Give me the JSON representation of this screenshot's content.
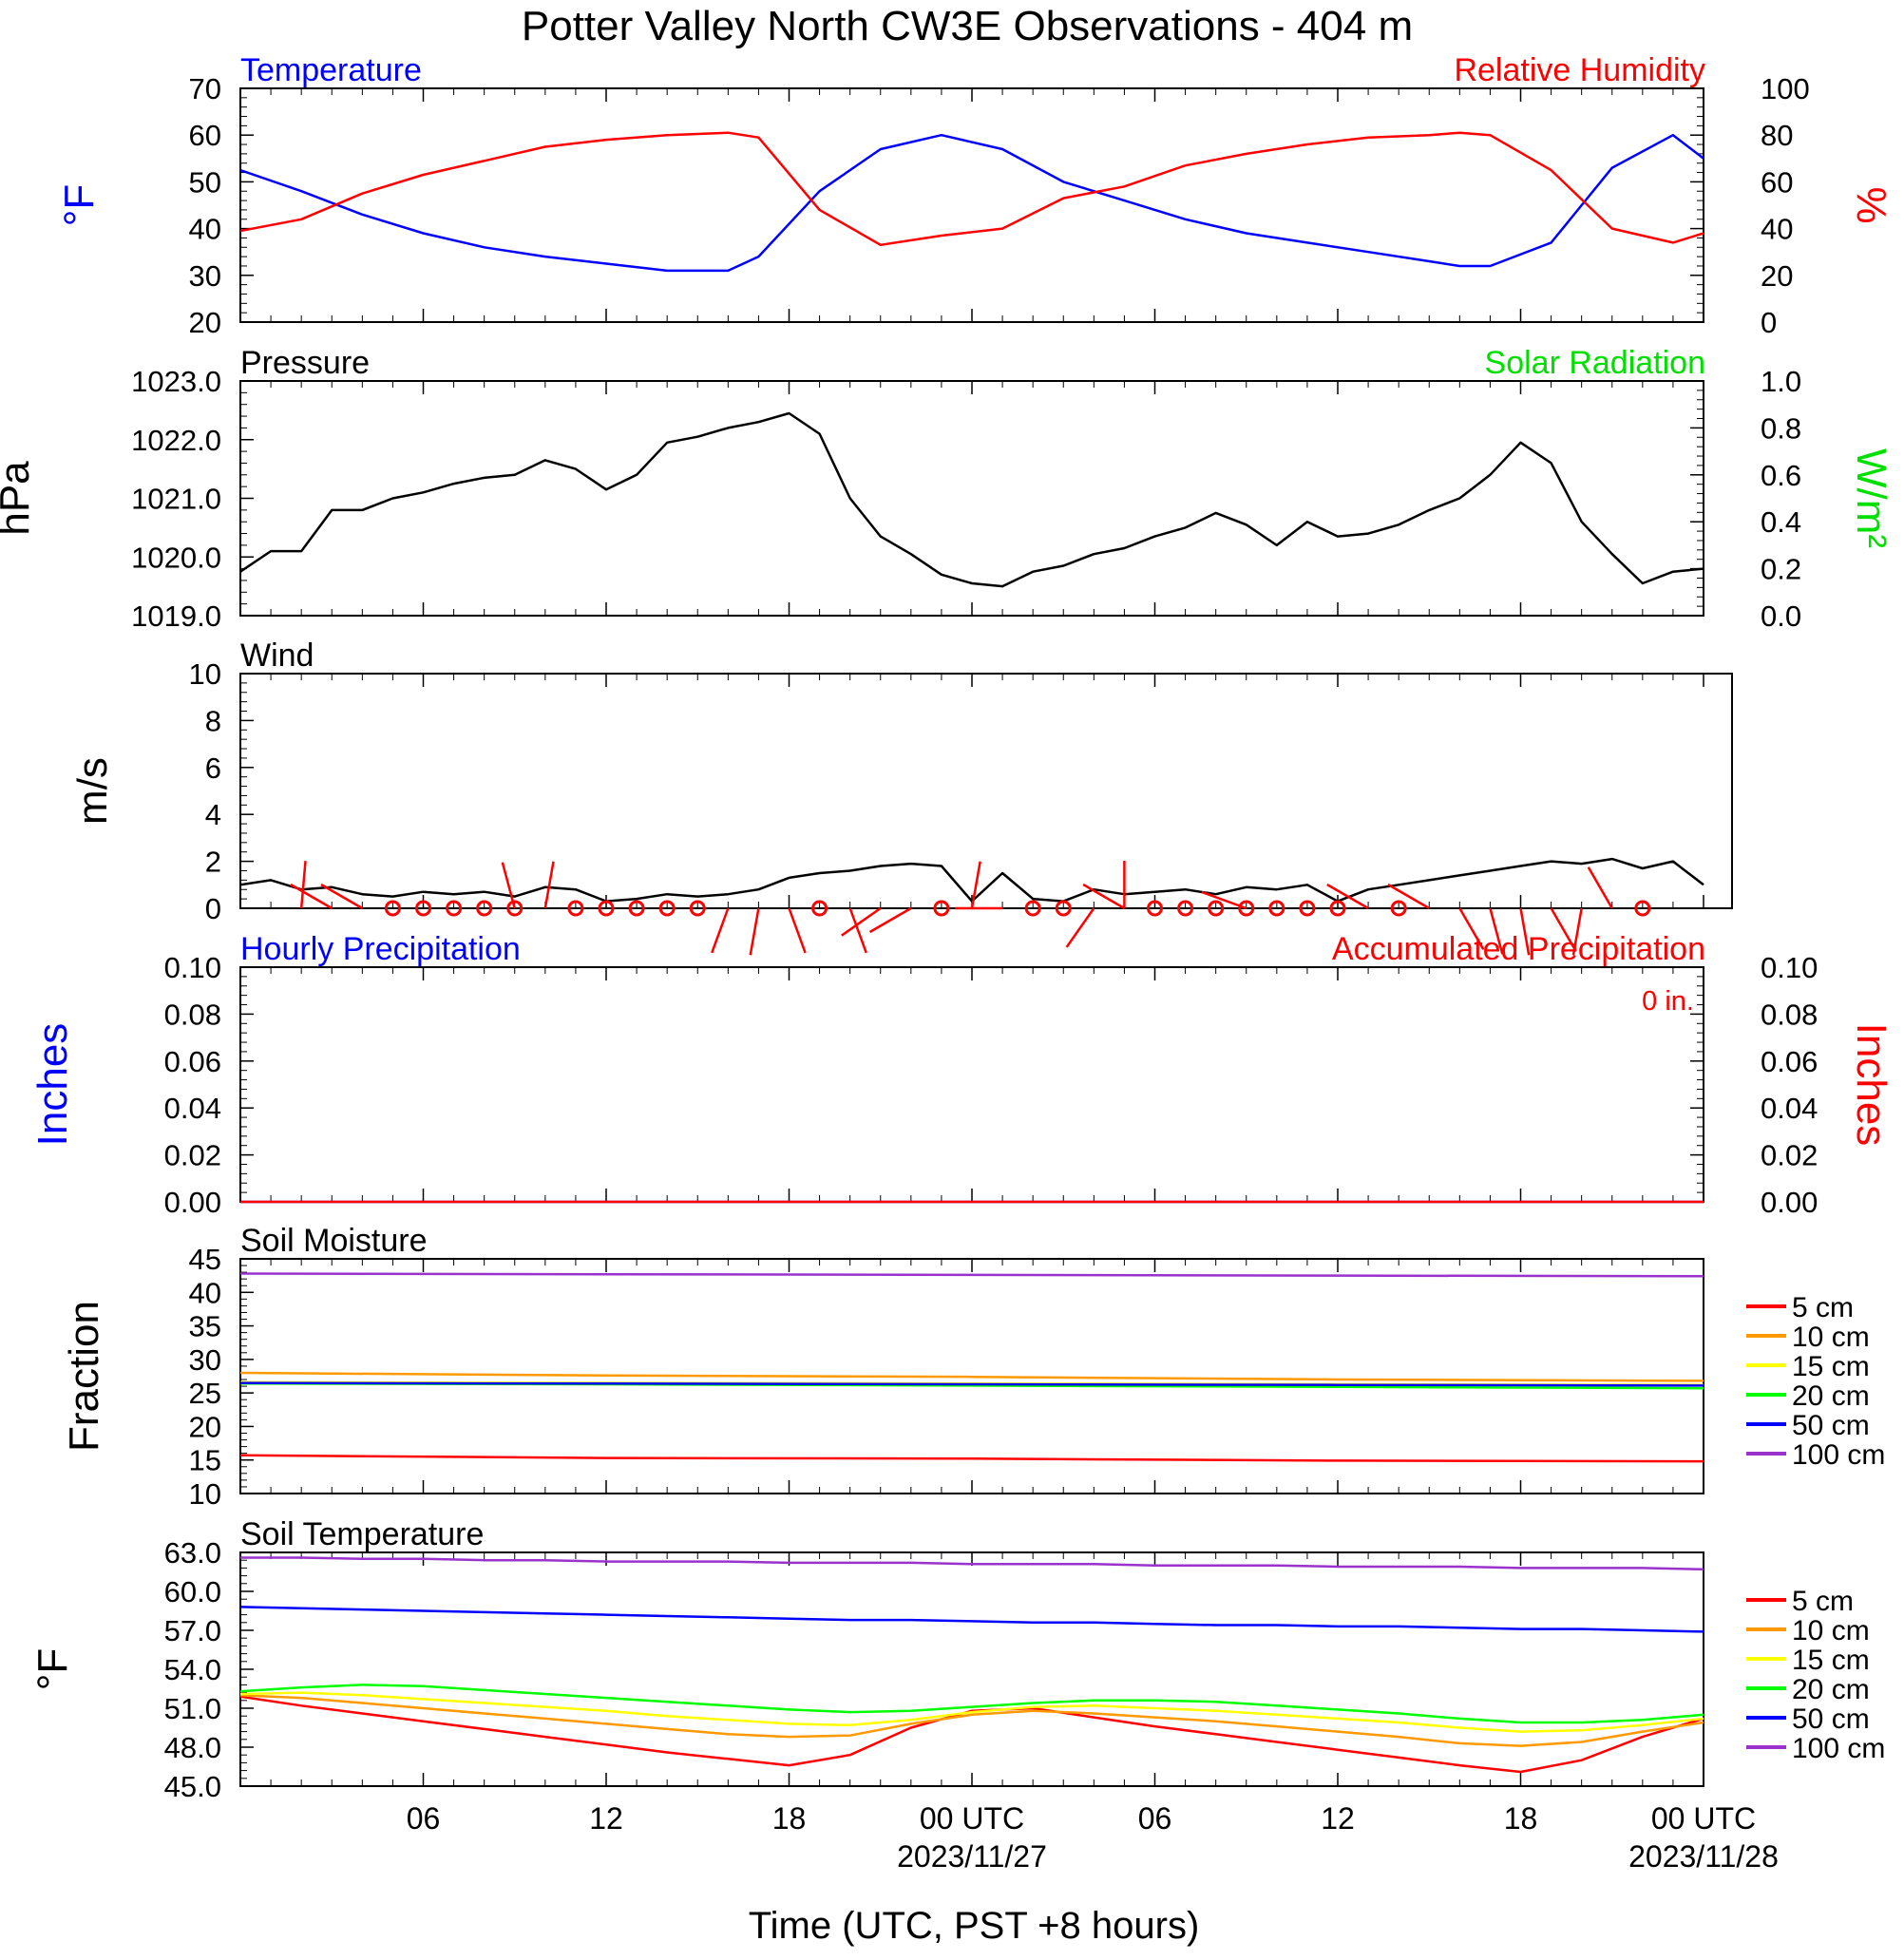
{
  "title": "Potter Valley North CW3E Observations - 404 m",
  "colors": {
    "blue": "#0000ff",
    "red": "#ff0000",
    "green": "#00e000",
    "black": "#000000"
  },
  "x_axis": {
    "title": "Time (UTC, PST +8 hours)",
    "range_hours": [
      0,
      48
    ],
    "ticks": [
      {
        "hour": 6,
        "label": "06",
        "date": ""
      },
      {
        "hour": 12,
        "label": "12",
        "date": ""
      },
      {
        "hour": 18,
        "label": "18",
        "date": ""
      },
      {
        "hour": 24,
        "label": "00 UTC",
        "date": "2023/11/27"
      },
      {
        "hour": 30,
        "label": "06",
        "date": ""
      },
      {
        "hour": 36,
        "label": "12",
        "date": ""
      },
      {
        "hour": 42,
        "label": "18",
        "date": ""
      },
      {
        "hour": 48,
        "label": "00 UTC",
        "date": "2023/11/28"
      }
    ]
  },
  "chart_data": [
    {
      "id": "temperature-rh",
      "type": "line",
      "title_left": "Temperature",
      "title_right": "Relative Humidity",
      "ylabel_left": "°F",
      "ylabel_right": "%",
      "ylim_left": [
        20,
        70
      ],
      "ylim_right": [
        0,
        100
      ],
      "yticks_left": [
        "20",
        "30",
        "40",
        "50",
        "60",
        "70"
      ],
      "yticks_right": [
        "0",
        "20",
        "40",
        "60",
        "80",
        "100"
      ],
      "x": [
        0,
        2,
        4,
        6,
        8,
        10,
        12,
        14,
        16,
        17,
        19,
        21,
        23,
        25,
        27,
        29,
        31,
        33,
        35,
        37,
        39,
        40,
        41,
        43,
        45,
        47,
        48
      ],
      "series": [
        {
          "name": "Temperature",
          "axis": "left",
          "color": "#0000ff",
          "values": [
            52.5,
            48,
            43,
            39,
            36,
            34,
            32.5,
            31,
            31,
            34,
            48,
            57,
            60,
            57,
            50,
            46,
            42,
            39,
            37,
            35,
            33,
            32,
            32,
            37,
            53,
            60,
            55
          ]
        },
        {
          "name": "Relative Humidity",
          "axis": "right",
          "color": "#ff0000",
          "values": [
            39,
            44,
            55,
            63,
            69,
            75,
            78,
            80,
            81,
            79,
            48,
            33,
            37,
            40,
            53,
            58,
            67,
            72,
            76,
            79,
            80,
            81,
            80,
            65,
            40,
            34,
            38
          ]
        }
      ]
    },
    {
      "id": "pressure-solar",
      "type": "line",
      "title_left": "Pressure",
      "title_right": "Solar Radiation",
      "ylabel_left": "hPa",
      "ylabel_right": "W/m²",
      "ylim_left": [
        1019.0,
        1023.0
      ],
      "ylim_right": [
        0.0,
        1.0
      ],
      "yticks_left": [
        "1019.0",
        "1020.0",
        "1021.0",
        "1022.0",
        "1023.0"
      ],
      "yticks_right": [
        "0.0",
        "0.2",
        "0.4",
        "0.6",
        "0.8",
        "1.0"
      ],
      "x": [
        0,
        1,
        2,
        3,
        4,
        5,
        6,
        7,
        8,
        9,
        10,
        11,
        12,
        13,
        14,
        15,
        16,
        17,
        18,
        19,
        20,
        21,
        22,
        23,
        24,
        25,
        26,
        27,
        28,
        29,
        30,
        31,
        32,
        33,
        34,
        35,
        36,
        37,
        38,
        39,
        40,
        41,
        42,
        43,
        44,
        45,
        46,
        47,
        48
      ],
      "series": [
        {
          "name": "Pressure",
          "axis": "left",
          "color": "#000000",
          "values": [
            1019.75,
            1020.1,
            1020.1,
            1020.8,
            1020.8,
            1021.0,
            1021.1,
            1021.25,
            1021.35,
            1021.4,
            1021.65,
            1021.5,
            1021.15,
            1021.4,
            1021.95,
            1022.05,
            1022.2,
            1022.3,
            1022.45,
            1022.1,
            1021.0,
            1020.35,
            1020.05,
            1019.7,
            1019.55,
            1019.5,
            1019.75,
            1019.85,
            1020.05,
            1020.15,
            1020.35,
            1020.5,
            1020.75,
            1020.55,
            1020.2,
            1020.6,
            1020.35,
            1020.4,
            1020.55,
            1020.8,
            1021.0,
            1021.4,
            1021.95,
            1021.6,
            1020.6,
            1020.05,
            1019.55,
            1019.75,
            1019.8
          ]
        }
      ]
    },
    {
      "id": "wind",
      "type": "line",
      "title_left": "Wind",
      "ylabel_left": "m/s",
      "ylim_left": [
        0,
        10
      ],
      "yticks_left": [
        "0",
        "2",
        "4",
        "6",
        "8",
        "10"
      ],
      "x": [
        0,
        1,
        2,
        3,
        4,
        5,
        6,
        7,
        8,
        9,
        10,
        11,
        12,
        13,
        14,
        15,
        16,
        17,
        18,
        19,
        20,
        21,
        22,
        23,
        24,
        25,
        26,
        27,
        28,
        29,
        30,
        31,
        32,
        33,
        34,
        35,
        36,
        37,
        38,
        39,
        40,
        41,
        42,
        43,
        44,
        45,
        46,
        47,
        48
      ],
      "series": [
        {
          "name": "Wind Speed",
          "axis": "left",
          "color": "#000000",
          "values": [
            1.0,
            1.2,
            0.8,
            0.9,
            0.6,
            0.5,
            0.7,
            0.6,
            0.7,
            0.5,
            0.9,
            0.8,
            0.3,
            0.4,
            0.6,
            0.5,
            0.6,
            0.8,
            1.3,
            1.5,
            1.6,
            1.8,
            1.9,
            1.8,
            0.3,
            1.5,
            0.4,
            0.3,
            0.8,
            0.6,
            0.7,
            0.8,
            0.6,
            0.9,
            0.8,
            1.0,
            0.3,
            0.8,
            1.0,
            1.2,
            1.4,
            1.6,
            1.8,
            2.0,
            1.9,
            2.1,
            1.7,
            2.0,
            1.0
          ]
        }
      ],
      "barbs": [
        {
          "hour": 2,
          "angle": 5
        },
        {
          "hour": 3,
          "angle": 300
        },
        {
          "hour": 4,
          "angle": 300
        },
        {
          "hour": 5,
          "angle": null
        },
        {
          "hour": 6,
          "angle": null
        },
        {
          "hour": 7,
          "angle": null
        },
        {
          "hour": 8,
          "angle": null
        },
        {
          "hour": 9,
          "angle": null
        },
        {
          "hour": 9,
          "angle": 345
        },
        {
          "hour": 10,
          "angle": 10
        },
        {
          "hour": 11,
          "angle": null
        },
        {
          "hour": 12,
          "angle": null
        },
        {
          "hour": 13,
          "angle": null
        },
        {
          "hour": 14,
          "angle": null
        },
        {
          "hour": 15,
          "angle": null
        },
        {
          "hour": 16,
          "angle": 200
        },
        {
          "hour": 17,
          "angle": 190
        },
        {
          "hour": 18,
          "angle": 160
        },
        {
          "hour": 19,
          "angle": null
        },
        {
          "hour": 20,
          "angle": 160
        },
        {
          "hour": 21,
          "angle": 235
        },
        {
          "hour": 22,
          "angle": 240
        },
        {
          "hour": 23,
          "angle": null
        },
        {
          "hour": 24,
          "angle": 10
        },
        {
          "hour": 25,
          "angle": 270
        },
        {
          "hour": 26,
          "angle": null
        },
        {
          "hour": 27,
          "angle": null
        },
        {
          "hour": 28,
          "angle": 215
        },
        {
          "hour": 29,
          "angle": 0
        },
        {
          "hour": 29,
          "angle": 300
        },
        {
          "hour": 30,
          "angle": null
        },
        {
          "hour": 31,
          "angle": null
        },
        {
          "hour": 32,
          "angle": null
        },
        {
          "hour": 33,
          "angle": null
        },
        {
          "hour": 33,
          "angle": 290
        },
        {
          "hour": 34,
          "angle": null
        },
        {
          "hour": 35,
          "angle": null
        },
        {
          "hour": 36,
          "angle": null
        },
        {
          "hour": 37,
          "angle": 300
        },
        {
          "hour": 38,
          "angle": null
        },
        {
          "hour": 39,
          "angle": 300
        },
        {
          "hour": 40,
          "angle": 150
        },
        {
          "hour": 41,
          "angle": 165
        },
        {
          "hour": 42,
          "angle": 170
        },
        {
          "hour": 43,
          "angle": 150
        },
        {
          "hour": 44,
          "angle": 190
        },
        {
          "hour": 45,
          "angle": 330
        },
        {
          "hour": 46,
          "angle": null
        }
      ]
    },
    {
      "id": "precipitation",
      "type": "line",
      "title_left": "Hourly Precipitation",
      "title_right": "Accumulated Precipitation",
      "annotation": "0 in.",
      "ylabel_left": "Inches",
      "ylabel_right": "Inches",
      "ylim_left": [
        0,
        0.1
      ],
      "ylim_right": [
        0,
        0.1
      ],
      "yticks_left": [
        "0.00",
        "0.02",
        "0.04",
        "0.06",
        "0.08",
        "0.10"
      ],
      "yticks_right": [
        "0.00",
        "0.02",
        "0.04",
        "0.06",
        "0.08",
        "0.10"
      ],
      "x": [
        0,
        48
      ],
      "series": [
        {
          "name": "Hourly Precipitation",
          "axis": "left",
          "color": "#0000ff",
          "values": [
            0,
            0
          ]
        },
        {
          "name": "Accumulated Precipitation",
          "axis": "right",
          "color": "#ff0000",
          "values": [
            0,
            0
          ]
        }
      ]
    },
    {
      "id": "soil-moisture",
      "type": "line",
      "title_left": "Soil Moisture",
      "ylabel_left": "Fraction",
      "ylim_left": [
        10,
        45
      ],
      "yticks_left": [
        "10",
        "15",
        "20",
        "25",
        "30",
        "35",
        "40",
        "45"
      ],
      "x": [
        0,
        12,
        24,
        36,
        48
      ],
      "series": [
        {
          "name": "5 cm",
          "color": "#ff0000",
          "values": [
            15.7,
            15.3,
            15.2,
            14.9,
            14.8
          ]
        },
        {
          "name": "10 cm",
          "color": "#ff9900",
          "values": [
            28.0,
            27.6,
            27.4,
            27.0,
            26.8
          ]
        },
        {
          "name": "15 cm",
          "color": "#ffff00",
          "values": [
            26.6,
            26.5,
            26.4,
            26.3,
            26.2
          ]
        },
        {
          "name": "20 cm",
          "color": "#00ff00",
          "values": [
            26.4,
            26.3,
            26.1,
            25.9,
            25.7
          ]
        },
        {
          "name": "50 cm",
          "color": "#0000ff",
          "values": [
            26.5,
            26.4,
            26.3,
            26.2,
            26.1
          ]
        },
        {
          "name": "100 cm",
          "color": "#9933cc",
          "values": [
            42.8,
            42.7,
            42.6,
            42.5,
            42.4
          ]
        }
      ]
    },
    {
      "id": "soil-temperature",
      "type": "line",
      "title_left": "Soil Temperature",
      "ylabel_left": "°F",
      "ylim_left": [
        45,
        63
      ],
      "yticks_left": [
        "45.0",
        "48.0",
        "51.0",
        "54.0",
        "57.0",
        "60.0",
        "63.0"
      ],
      "x": [
        0,
        2,
        4,
        6,
        8,
        10,
        12,
        14,
        16,
        18,
        20,
        22,
        24,
        26,
        28,
        30,
        32,
        34,
        36,
        38,
        40,
        42,
        44,
        46,
        48
      ],
      "series": [
        {
          "name": "5 cm",
          "color": "#ff0000",
          "values": [
            51.9,
            51.2,
            50.6,
            50.0,
            49.4,
            48.8,
            48.2,
            47.6,
            47.1,
            46.6,
            47.4,
            49.5,
            50.8,
            51.0,
            50.3,
            49.6,
            49.0,
            48.4,
            47.8,
            47.2,
            46.6,
            46.1,
            47.0,
            48.8,
            50.2
          ]
        },
        {
          "name": "10 cm",
          "color": "#ff9900",
          "values": [
            52.0,
            51.8,
            51.4,
            51.0,
            50.6,
            50.2,
            49.8,
            49.4,
            49.0,
            48.8,
            48.9,
            49.8,
            50.5,
            50.8,
            50.6,
            50.3,
            50.0,
            49.6,
            49.2,
            48.8,
            48.3,
            48.1,
            48.4,
            49.2,
            49.9
          ]
        },
        {
          "name": "15 cm",
          "color": "#ffff00",
          "values": [
            52.1,
            52.2,
            52.0,
            51.7,
            51.4,
            51.1,
            50.8,
            50.4,
            50.1,
            49.8,
            49.7,
            50.1,
            50.7,
            51.1,
            51.2,
            51.0,
            50.8,
            50.5,
            50.2,
            49.9,
            49.5,
            49.2,
            49.3,
            49.7,
            50.2
          ]
        },
        {
          "name": "20 cm",
          "color": "#00ff00",
          "values": [
            52.3,
            52.6,
            52.8,
            52.7,
            52.4,
            52.1,
            51.8,
            51.5,
            51.2,
            50.9,
            50.7,
            50.8,
            51.1,
            51.4,
            51.6,
            51.6,
            51.5,
            51.2,
            50.9,
            50.6,
            50.2,
            49.9,
            49.9,
            50.1,
            50.5
          ]
        },
        {
          "name": "50 cm",
          "color": "#0000ff",
          "values": [
            58.8,
            58.7,
            58.6,
            58.5,
            58.4,
            58.3,
            58.2,
            58.1,
            58.0,
            57.9,
            57.8,
            57.8,
            57.7,
            57.6,
            57.6,
            57.5,
            57.4,
            57.4,
            57.3,
            57.3,
            57.2,
            57.1,
            57.1,
            57.0,
            56.9
          ]
        },
        {
          "name": "100 cm",
          "color": "#9933cc",
          "values": [
            62.6,
            62.6,
            62.5,
            62.5,
            62.4,
            62.4,
            62.3,
            62.3,
            62.3,
            62.2,
            62.2,
            62.2,
            62.1,
            62.1,
            62.1,
            62.0,
            62.0,
            62.0,
            61.9,
            61.9,
            61.9,
            61.8,
            61.8,
            61.8,
            61.7
          ]
        }
      ]
    }
  ]
}
